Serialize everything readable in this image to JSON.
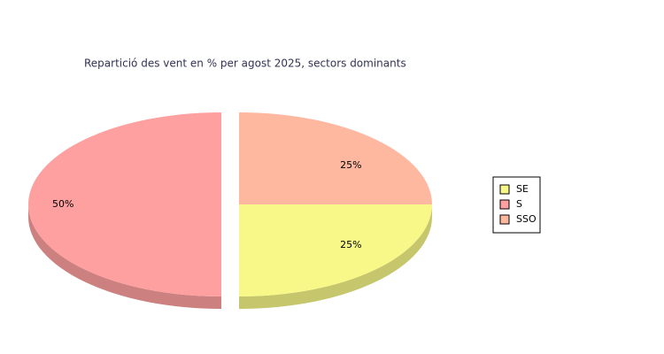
{
  "chart_data": {
    "type": "pie",
    "title": "Repartició des vent en % per agost 2025, sectors dominants",
    "categories": [
      "SE",
      "S",
      "SSO"
    ],
    "values": [
      25,
      50,
      25
    ],
    "value_labels": [
      "25%",
      "50%",
      "25%"
    ],
    "colors": [
      "#f8f888",
      "#ffa0a0",
      "#ffb8a0"
    ],
    "legend": "right"
  }
}
